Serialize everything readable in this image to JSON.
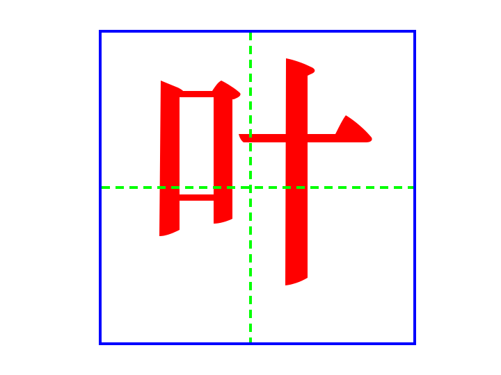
{
  "character": "叶",
  "colors": {
    "background": "#ffffff",
    "frame": "#0000ff",
    "guide": "#00ff00",
    "glyph": "#ff0000"
  },
  "grid": {
    "type": "practice-grid",
    "guides": "center-cross",
    "guide_style": "dashed"
  }
}
